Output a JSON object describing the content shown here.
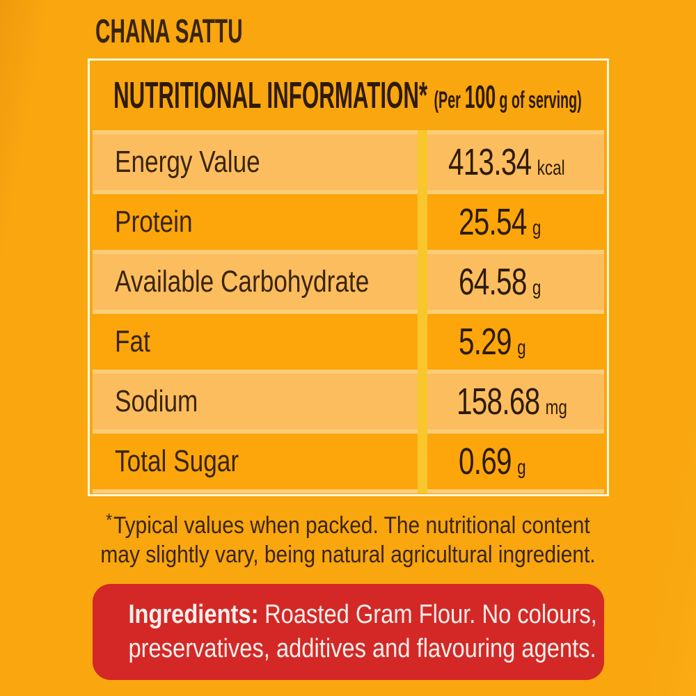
{
  "product_title": "CHANA SATTU",
  "table": {
    "header": {
      "title": "NUTRITIONAL INFORMATION*",
      "serving_prefix": "(Per",
      "serving_amount": "100",
      "serving_suffix": "g of serving)"
    },
    "rows": [
      {
        "label": "Energy Value",
        "value": "413.34",
        "unit": "kcal"
      },
      {
        "label": "Protein",
        "value": "25.54",
        "unit": "g"
      },
      {
        "label": "Available Carbohydrate",
        "value": "64.58",
        "unit": "g"
      },
      {
        "label": "Fat",
        "value": "5.29",
        "unit": "g"
      },
      {
        "label": "Sodium",
        "value": "158.68",
        "unit": "mg"
      },
      {
        "label": "Total Sugar",
        "value": "0.69",
        "unit": "g"
      }
    ]
  },
  "footnote": {
    "asterisk": "*",
    "line1": "Typical values when packed. The nutritional content",
    "line2": "may slightly vary, being natural agricultural ingredient."
  },
  "ingredients": {
    "label": "Ingredients:",
    "line1_rest": "Roasted Gram Flour. No colours,",
    "line2": "preservatives, additives and flavouring agents."
  },
  "colors": {
    "page_bg": "#f9a60f",
    "row_dark": "#fca60c",
    "row_light": "#fcbd5f",
    "row_gap": "#fbcd77",
    "divider_yellow": "#f8c72b",
    "table_border": "#fff9dc",
    "text_brown": "#3a2509",
    "text_dark": "#2e1b04",
    "ingredients_bg": "#d42827",
    "ingredients_text": "#f7f0eb"
  }
}
